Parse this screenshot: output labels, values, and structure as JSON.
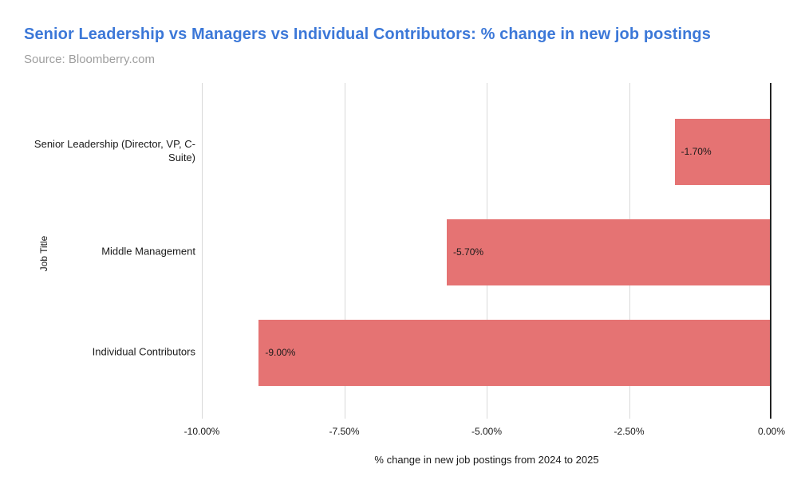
{
  "header": {
    "title": "Senior Leadership vs Managers vs Individual Contributors: % change in new job postings",
    "source": "Source: Bloomberry.com",
    "title_color": "#3c78d8",
    "source_color": "#9e9e9e"
  },
  "chart_data": {
    "type": "bar",
    "orientation": "horizontal",
    "title": "Senior Leadership vs Managers vs Individual Contributors: % change in new job postings",
    "subtitle": "Source: Bloomberry.com",
    "categories": [
      "Senior Leadership (Director, VP, C-Suite)",
      "Middle Management",
      "Individual Contributors"
    ],
    "values": [
      -1.7,
      -5.7,
      -9.0
    ],
    "value_labels": [
      "-1.70%",
      "-5.70%",
      "-9.00%"
    ],
    "xlabel": "% change in new job postings from 2024 to 2025",
    "ylabel": "Job Title",
    "xlim": [
      -10,
      0
    ],
    "xticks": [
      -10,
      -7.5,
      -5,
      -2.5,
      0
    ],
    "xtick_labels": [
      "-10.00%",
      "-7.50%",
      "-5.00%",
      "-2.50%",
      "0.00%"
    ],
    "grid": true,
    "legend": false,
    "bar_color": "#e57373",
    "gridline_color": "#d9d9d9",
    "axis_line_color": "#222222"
  }
}
